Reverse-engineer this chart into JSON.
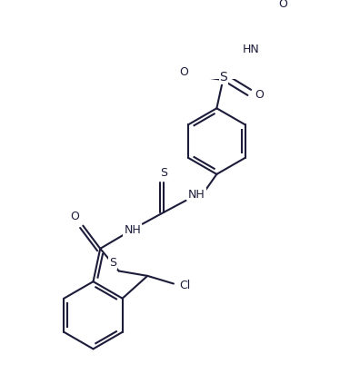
{
  "bg": "#ffffff",
  "lc": "#1c1c3a",
  "lw": 1.5,
  "fs": 9.0,
  "fig_w": 3.74,
  "fig_h": 4.12,
  "dpi": 100,
  "xlim": [
    0,
    374
  ],
  "ylim": [
    0,
    412
  ]
}
